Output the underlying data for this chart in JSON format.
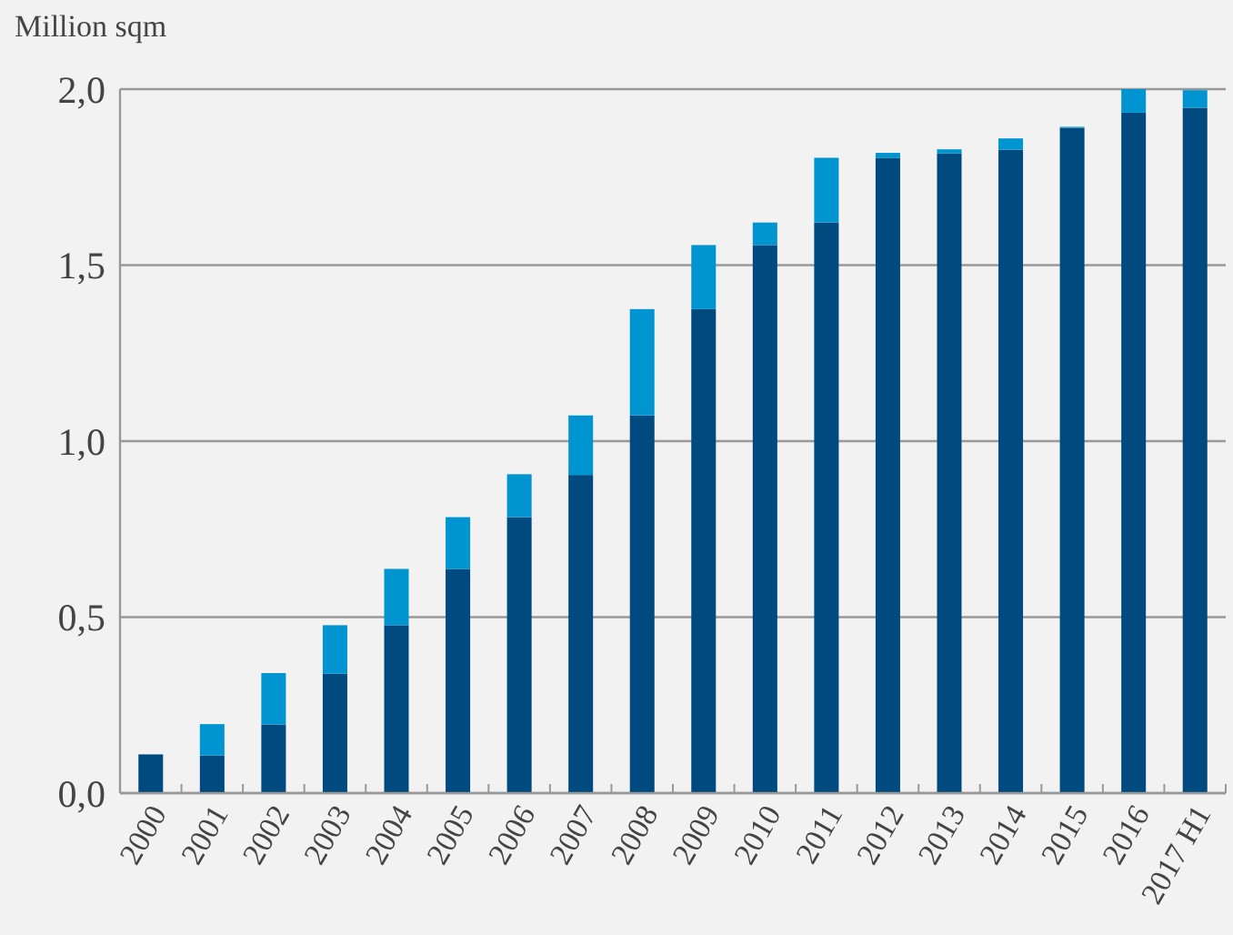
{
  "chart_data": {
    "type": "bar",
    "stacked": true,
    "ylabel": "Million sqm",
    "categories": [
      "2000",
      "2001",
      "2002",
      "2003",
      "2004",
      "2005",
      "2006",
      "2007",
      "2008",
      "2009",
      "2010",
      "2011",
      "2012",
      "2013",
      "2014",
      "2015",
      "2016",
      "2017 H1"
    ],
    "series": [
      {
        "color": "#004a80",
        "values": [
          0.11,
          0.107,
          0.195,
          0.339,
          0.477,
          0.637,
          0.784,
          0.904,
          1.073,
          1.375,
          1.557,
          1.621,
          1.805,
          1.817,
          1.828,
          1.89,
          1.933,
          1.947
        ]
      },
      {
        "color": "#0095d0",
        "values": [
          null,
          0.089,
          0.146,
          0.138,
          0.16,
          0.147,
          0.122,
          0.169,
          0.302,
          0.182,
          0.064,
          0.184,
          0.014,
          0.012,
          0.032,
          0.003,
          0.067,
          0.05
        ]
      }
    ],
    "ylim": [
      0,
      2
    ],
    "yticks": [
      {
        "value": 0,
        "label": "0,0"
      },
      {
        "value": 0.5,
        "label": "0,5"
      },
      {
        "value": 1,
        "label": "1,0"
      },
      {
        "value": 1.5,
        "label": "1,5"
      },
      {
        "value": 2,
        "label": "2,0"
      }
    ],
    "grid": "y"
  }
}
